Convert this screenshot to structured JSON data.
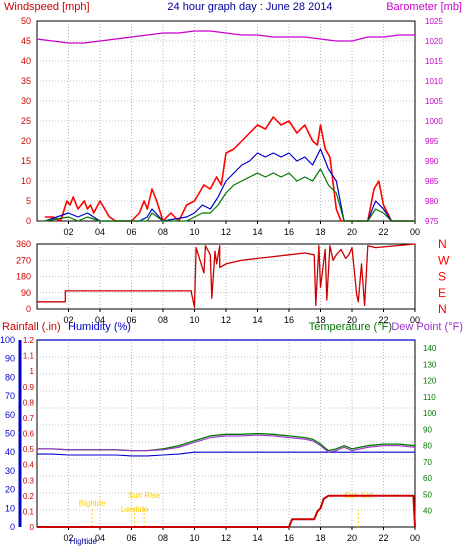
{
  "chart_data": [
    {
      "type": "line",
      "title": "24 hour graph day : June 28 2014",
      "ylabel_left": "Windspeed [mph]",
      "ylabel_right": "Barometer [mb]",
      "ylim_left": [
        0,
        50
      ],
      "ylim_right": [
        975,
        1025
      ],
      "yticks_left": [
        "0",
        "5",
        "10",
        "15",
        "20",
        "25",
        "30",
        "35",
        "40",
        "45",
        "50"
      ],
      "yticks_right": [
        "975",
        "980",
        "985",
        "990",
        "995",
        "1000",
        "1005",
        "1010",
        "1015",
        "1020",
        "1025"
      ],
      "xlim": [
        0,
        24
      ],
      "xticks": [
        "02",
        "04",
        "06",
        "08",
        "10",
        "12",
        "14",
        "16",
        "18",
        "20",
        "22",
        "00"
      ],
      "grid": true,
      "colors": {
        "gust": "#ff0000",
        "avg": "#0000cc",
        "speed": "#007700",
        "barometer": "#cc00cc",
        "title": "#000099"
      },
      "series": [
        {
          "name": "Windspeed",
          "role": "gust",
          "x": [
            0.5,
            1.0,
            1.5,
            1.9,
            2.1,
            2.3,
            2.6,
            3.0,
            3.2,
            3.4,
            3.6,
            4.0,
            4.3,
            4.6,
            5.0,
            6.0,
            6.5,
            6.8,
            7.0,
            7.3,
            7.6,
            8.0,
            8.5,
            9.0,
            9.5,
            10.0,
            10.3,
            10.6,
            11.0,
            11.4,
            11.7,
            12.0,
            12.5,
            13.0,
            13.5,
            14.0,
            14.5,
            15.0,
            15.5,
            16.0,
            16.5,
            17.0,
            17.5,
            17.8,
            18.0,
            18.3,
            18.6,
            19.0,
            19.3,
            19.6,
            20.0,
            20.5,
            21.0,
            21.4,
            21.7,
            22.0,
            22.5,
            23.0,
            24.0
          ],
          "values": [
            1,
            1,
            0,
            5,
            4,
            6,
            3,
            5,
            3,
            4,
            2,
            5,
            3,
            1,
            0,
            0,
            2,
            5,
            3,
            8,
            5,
            0,
            2,
            0,
            4,
            5,
            7,
            9,
            8,
            11,
            9,
            17,
            18,
            20,
            22,
            24,
            23,
            26,
            24,
            25,
            22,
            24,
            20,
            19,
            24,
            18,
            16,
            3,
            0,
            0,
            0,
            0,
            0,
            8,
            10,
            4,
            0,
            0,
            0
          ]
        },
        {
          "name": "Average",
          "role": "avg",
          "x": [
            0.5,
            2.0,
            2.6,
            3.2,
            4.0,
            6.5,
            7.0,
            7.3,
            8.0,
            9.5,
            10.0,
            10.5,
            11.0,
            11.5,
            12.0,
            12.5,
            13.0,
            13.5,
            14.0,
            14.5,
            15.0,
            15.5,
            16.0,
            16.5,
            17.0,
            17.5,
            18.0,
            18.5,
            19.0,
            19.5,
            20.0,
            21.0,
            21.5,
            22.0,
            22.5,
            24.0
          ],
          "values": [
            0,
            2,
            1,
            2,
            0,
            0,
            1,
            3,
            0,
            1,
            2,
            4,
            3,
            6,
            10,
            12,
            14,
            15,
            17,
            16,
            17,
            16,
            17,
            15,
            16,
            14,
            18,
            13,
            10,
            0,
            0,
            0,
            5,
            3,
            0,
            0
          ]
        },
        {
          "name": "Windspeed",
          "role": "speed",
          "x": [
            0.5,
            2.0,
            2.6,
            3.2,
            4.0,
            6.5,
            7.0,
            7.3,
            8.0,
            9.5,
            10.0,
            10.5,
            11.0,
            11.5,
            12.0,
            12.5,
            13.0,
            13.5,
            14.0,
            14.5,
            15.0,
            15.5,
            16.0,
            16.5,
            17.0,
            17.5,
            18.0,
            18.5,
            19.0,
            19.5,
            20.0,
            21.0,
            21.5,
            22.0,
            22.5,
            24.0
          ],
          "values": [
            0,
            1,
            0,
            1,
            0,
            0,
            0,
            2,
            0,
            0,
            1,
            2,
            2,
            4,
            7,
            9,
            10,
            11,
            12,
            11,
            12,
            11,
            12,
            10,
            11,
            10,
            13,
            9,
            7,
            0,
            0,
            0,
            3,
            2,
            0,
            0
          ]
        },
        {
          "name": "Barometer",
          "role": "barometer",
          "x": [
            0,
            1,
            2,
            3,
            4,
            5,
            6,
            7,
            8,
            9,
            10,
            11,
            12,
            13,
            14,
            15,
            16,
            17,
            18,
            19,
            20,
            21,
            22,
            23,
            24
          ],
          "values": [
            1020.5,
            1020.0,
            1019.5,
            1019.5,
            1020.0,
            1020.5,
            1021.0,
            1021.5,
            1022.0,
            1022.0,
            1022.5,
            1022.5,
            1022.0,
            1021.5,
            1021.5,
            1021.0,
            1021.0,
            1021.0,
            1020.5,
            1020.0,
            1020.0,
            1021.0,
            1021.0,
            1021.5,
            1021.5
          ]
        }
      ]
    },
    {
      "type": "line",
      "ylabel_left": "",
      "ylim": [
        0,
        360
      ],
      "yticks": [
        "0",
        "90",
        "180",
        "270",
        "360"
      ],
      "right_labels": [
        "N",
        "W",
        "S",
        "E",
        "N"
      ],
      "xlim": [
        0,
        24
      ],
      "xticks": [
        "02",
        "04",
        "06",
        "08",
        "10",
        "12",
        "14",
        "16",
        "18",
        "20",
        "22",
        "00"
      ],
      "grid": true,
      "colors": {
        "direction": "#cc0000",
        "letters": "#ff0000"
      },
      "series": [
        {
          "name": "Wind Direction",
          "x": [
            0,
            1.8,
            1.8,
            9.8,
            9.8,
            10.0,
            10.1,
            10.6,
            10.7,
            11.0,
            11.1,
            11.3,
            11.4,
            11.6,
            11.6,
            12.0,
            13,
            14,
            15,
            16,
            17,
            17.6,
            17.7,
            17.9,
            18.0,
            18.3,
            18.4,
            18.6,
            18.8,
            19.0,
            19.3,
            19.6,
            19.8,
            20.0,
            20.3,
            20.4,
            20.6,
            20.8,
            21.0,
            21.5,
            24.0
          ],
          "values": [
            40,
            40,
            100,
            100,
            90,
            10,
            340,
            200,
            350,
            300,
            60,
            320,
            250,
            350,
            230,
            250,
            270,
            280,
            290,
            300,
            310,
            300,
            20,
            350,
            120,
            330,
            50,
            350,
            270,
            300,
            330,
            280,
            300,
            340,
            80,
            40,
            250,
            20,
            350,
            340,
            360
          ]
        }
      ]
    },
    {
      "type": "line",
      "ylabel_left": "Rainfall (.in)",
      "ylabel_left2": "Humidity (%)",
      "ylabel_right": "Temperature (°F)",
      "ylabel_right2": "Dew Point (°F)",
      "ylim_rain": [
        0,
        1.2
      ],
      "yticks_rain": [
        "0",
        "0.1",
        "0.2",
        "0.3",
        "0.4",
        "0.5",
        "0.6",
        "0.7",
        "0.8",
        "0.9",
        "1",
        "1.1",
        "1.2"
      ],
      "ylim_humidity": [
        0,
        100
      ],
      "yticks_humidity": [
        "0",
        "10",
        "20",
        "30",
        "40",
        "50",
        "60",
        "70",
        "80",
        "90",
        "100"
      ],
      "ylim_temp": [
        30,
        145
      ],
      "yticks_temp": [
        "40",
        "50",
        "60",
        "70",
        "80",
        "90",
        "100",
        "110",
        "120",
        "130",
        "140"
      ],
      "xlim": [
        0,
        24
      ],
      "xticks": [
        "02",
        "04",
        "06",
        "08",
        "10",
        "12",
        "14",
        "16",
        "18",
        "20",
        "22",
        "00"
      ],
      "grid": true,
      "colors": {
        "rainfall": "#cc0000",
        "humidity": "#0000cc",
        "temperature": "#007700",
        "dewpoint": "#9933cc",
        "sun_moon": "#ffcc00"
      },
      "events": [
        {
          "label": "Bighide",
          "x": 3.5
        },
        {
          "label": "Sun Rise",
          "x": 6.8
        },
        {
          "label": "Lowtide",
          "x": 6.2
        },
        {
          "label": "Sun Set",
          "x": 20.4
        }
      ],
      "bottom_labels": [
        "High",
        "tide"
      ],
      "series": [
        {
          "name": "Temperature",
          "x": [
            0,
            1,
            2,
            3,
            4,
            5,
            6,
            7,
            8,
            9,
            10,
            11,
            12,
            13,
            14,
            15,
            16,
            17,
            17.5,
            18,
            18.5,
            19,
            19.5,
            20,
            20.5,
            21,
            22,
            23,
            24
          ],
          "values": [
            78,
            78,
            77.5,
            77.5,
            77.5,
            77.5,
            77,
            77,
            78,
            80,
            83,
            86,
            87,
            87,
            87.5,
            87,
            86,
            85,
            84,
            81,
            77,
            78,
            80,
            78,
            79,
            80,
            81,
            81,
            80
          ]
        },
        {
          "name": "Humidity",
          "x": [
            0,
            1,
            2,
            3,
            4,
            5,
            6,
            7,
            8,
            9,
            10,
            24
          ],
          "values": [
            39,
            39,
            38.5,
            38.5,
            38.5,
            38.5,
            38,
            38,
            38.5,
            39,
            40,
            40
          ]
        },
        {
          "name": "Dew Point",
          "x": [
            0,
            1,
            2,
            3,
            4,
            5,
            6,
            7,
            8,
            9,
            10,
            11,
            12,
            13,
            14,
            15,
            16,
            17,
            17.5,
            18,
            18.5,
            19,
            19.5,
            20,
            20.5,
            21,
            22,
            23,
            24
          ],
          "values": [
            78,
            78,
            77.5,
            77.5,
            77.5,
            77.5,
            77,
            77,
            77.5,
            79,
            82,
            85,
            86,
            86,
            86.5,
            86,
            85,
            84,
            83,
            80,
            76,
            77,
            79,
            77,
            78,
            79,
            80,
            80,
            79
          ]
        },
        {
          "name": "Rainfall",
          "x": [
            0,
            16.0,
            16.2,
            17.6,
            17.8,
            18.0,
            18.2,
            18.5,
            19.0,
            23.9,
            24.0
          ],
          "values": [
            0,
            0,
            0.05,
            0.05,
            0.1,
            0.12,
            0.18,
            0.2,
            0.2,
            0.2,
            0
          ]
        }
      ]
    }
  ]
}
